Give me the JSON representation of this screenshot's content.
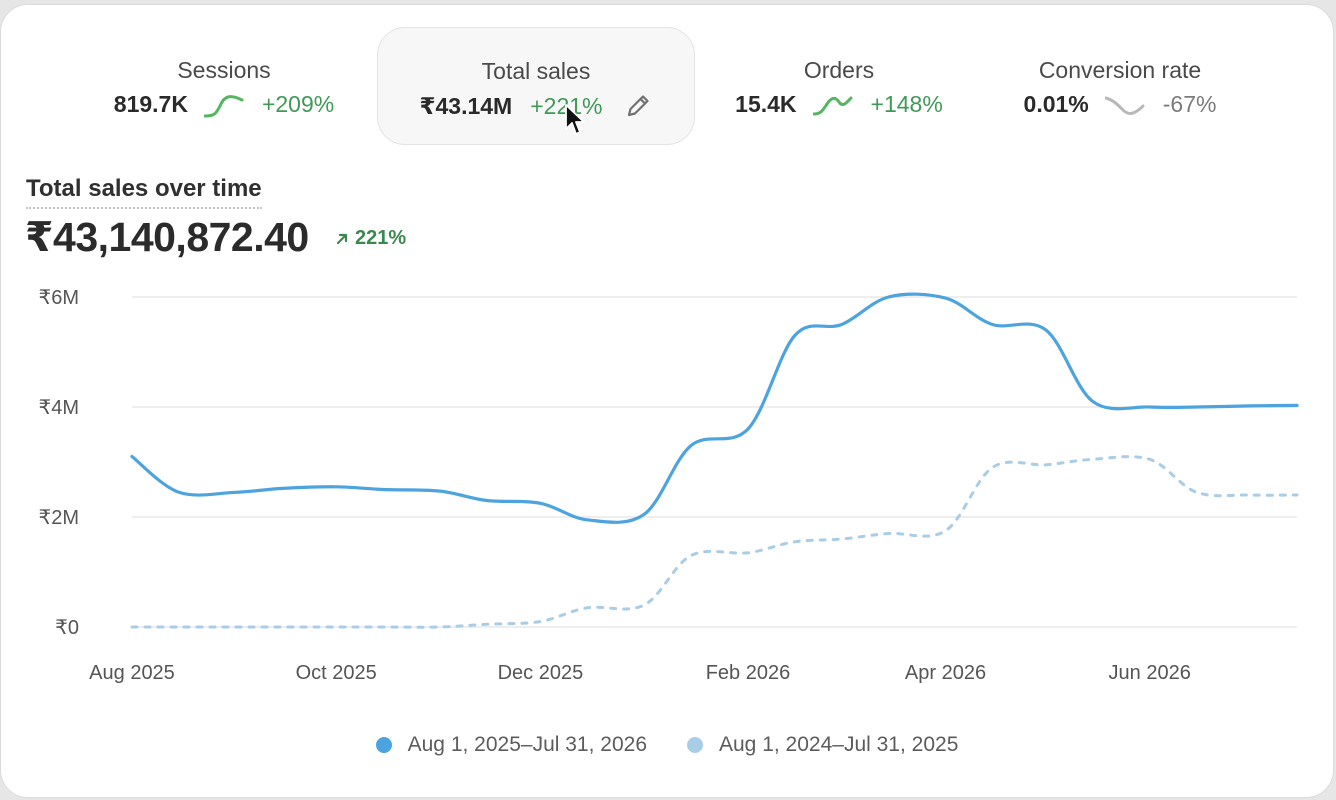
{
  "metrics": [
    {
      "label": "Sessions",
      "value": "819.7K",
      "change": "+209%",
      "trend": "up",
      "selected": false
    },
    {
      "label": "Total sales",
      "value": "₹43.14M",
      "change": "+221%",
      "trend": "up",
      "selected": true
    },
    {
      "label": "Orders",
      "value": "15.4K",
      "change": "+148%",
      "trend": "up",
      "selected": false
    },
    {
      "label": "Conversion rate",
      "value": "0.01%",
      "change": "-67%",
      "trend": "down",
      "selected": false
    }
  ],
  "chart": {
    "title": "Total sales over time",
    "total": "₹43,140,872.40",
    "total_change": "221%",
    "colors": {
      "current": "#4da3de",
      "previous": "#a9cde6",
      "grid": "#e8e8e8",
      "up": "#3f9a56"
    }
  },
  "chart_data": {
    "type": "line",
    "title": "Total sales over time",
    "x_ticks": [
      "Aug 2025",
      "Oct 2025",
      "Dec 2025",
      "Feb 2026",
      "Apr 2026",
      "Jun 2026"
    ],
    "y_ticks": [
      "₹0",
      "₹2M",
      "₹4M",
      "₹6M"
    ],
    "ylim": [
      0,
      6000000
    ],
    "grid": true,
    "legend_position": "bottom",
    "x": [
      "2025-08-01",
      "2025-08-15",
      "2025-09-01",
      "2025-09-15",
      "2025-10-01",
      "2025-10-15",
      "2025-11-01",
      "2025-11-15",
      "2025-12-01",
      "2025-12-15",
      "2026-01-01",
      "2026-01-15",
      "2026-02-01",
      "2026-02-15",
      "2026-03-01",
      "2026-03-15",
      "2026-04-01",
      "2026-04-15",
      "2026-05-01",
      "2026-05-15",
      "2026-06-01",
      "2026-06-15",
      "2026-07-01",
      "2026-07-15"
    ],
    "series": [
      {
        "name": "Aug 1, 2025–Jul 31, 2026",
        "style": "solid",
        "values": [
          3100000,
          2450000,
          2450000,
          2520000,
          2550000,
          2500000,
          2470000,
          2300000,
          2250000,
          1950000,
          2050000,
          3300000,
          3600000,
          5300000,
          5500000,
          6000000,
          5980000,
          5500000,
          5400000,
          4100000,
          4000000,
          4000000,
          4020000,
          4030000
        ]
      },
      {
        "name": "Aug 1, 2024–Jul 31, 2025",
        "style": "dashed",
        "values": [
          0,
          0,
          0,
          0,
          0,
          0,
          0,
          50000,
          100000,
          350000,
          400000,
          1300000,
          1350000,
          1550000,
          1600000,
          1700000,
          1750000,
          2900000,
          2950000,
          3050000,
          3050000,
          2450000,
          2400000,
          2400000
        ]
      }
    ]
  }
}
